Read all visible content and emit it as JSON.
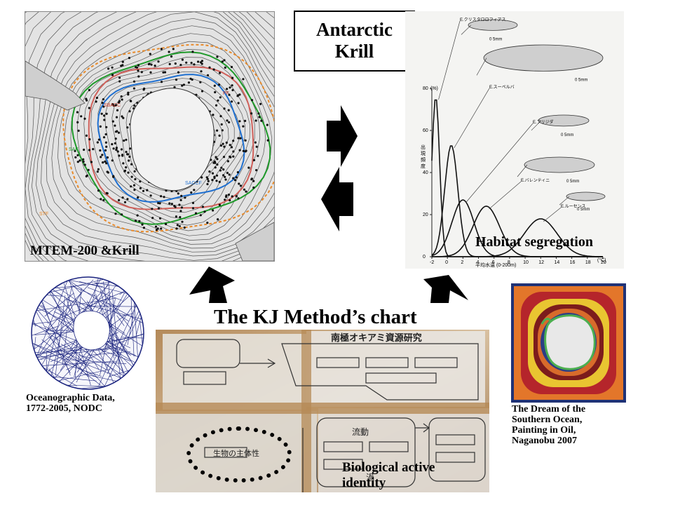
{
  "title_box": {
    "line1": "Antarctic",
    "line2": "Krill"
  },
  "map_panel": {
    "caption": "MTEM-200 &Krill",
    "front_labels": [
      "SBACC",
      "SACCF",
      "PF",
      "SAF",
      "STF"
    ]
  },
  "chart_panel": {
    "caption": "Habitat segregation",
    "y_unit": "(%)",
    "y_label": "出現頻度",
    "x_label": "平均水温 (0-200m)",
    "x_unit": "(°C)",
    "x_ticks": [
      "-2",
      "0",
      "2",
      "4",
      "6",
      "8",
      "10",
      "12",
      "14",
      "16",
      "18",
      "20"
    ],
    "y_ticks": [
      "0",
      "20",
      "40",
      "60",
      "80"
    ],
    "scale_label": "0    5mm",
    "species": [
      "E.クリスタロロフィアス",
      "E.スーペルバ",
      "E.フリジダ",
      "E.バレンティニ",
      "E.ルーセンス"
    ]
  },
  "kj_panel": {
    "title": "The KJ Method’s chart",
    "caption_line1": "Biological active",
    "caption_line2": "identity",
    "note_title": "南極オキアミ資源研究",
    "note_circle": "生物の主体性",
    "note_flow": "流動",
    "note_eddy": "渦"
  },
  "nodc_panel": {
    "caption_line1": "Oceanographic Data,",
    "caption_line2": "1772-2005, NODC"
  },
  "painting_panel": {
    "caption_line1": "The Dream of the",
    "caption_line2": "Southern Ocean,",
    "caption_line3": "Painting in Oil,",
    "caption_line4": "Naganobu 2007"
  },
  "colors": {
    "arrow": "#000000",
    "front_green": "#1f9a2a",
    "front_blue": "#1e6fd0",
    "front_red": "#d0605a",
    "front_orange": "#e88a2a",
    "painting_orange": "#e3762a",
    "painting_red": "#b5252b",
    "painting_yellow": "#e9c531",
    "painting_navy": "#1f3276"
  }
}
